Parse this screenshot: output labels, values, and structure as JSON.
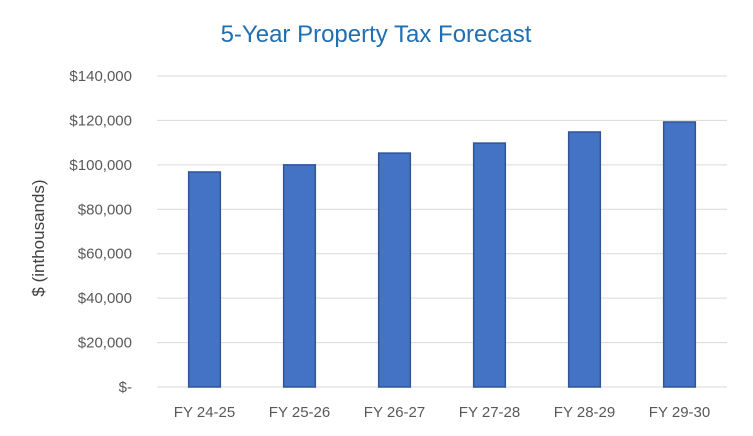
{
  "chart_data": {
    "type": "bar",
    "title": "5-Year Property Tax Forecast",
    "xlabel": "",
    "ylabel": "$ (inthousands)",
    "categories": [
      "FY 24-25",
      "FY 25-26",
      "FY 26-27",
      "FY 27-28",
      "FY 28-29",
      "FY 29-30"
    ],
    "values": [
      96800,
      100000,
      105300,
      109800,
      114800,
      119300
    ],
    "ylim": [
      0,
      140000
    ],
    "yticks": [
      0,
      20000,
      40000,
      60000,
      80000,
      100000,
      120000,
      140000
    ],
    "ytick_labels": [
      "$-",
      "$20,000",
      "$40,000",
      "$60,000",
      "$80,000",
      "$100,000",
      "$120,000",
      "$140,000"
    ],
    "grid": true,
    "legend": "none",
    "colors": {
      "bar_fill": "#4472C4",
      "bar_edge": "#2F5597",
      "title": "#1F6FB2",
      "grid": "#D9D9D9",
      "tick_text": "#595959"
    }
  }
}
